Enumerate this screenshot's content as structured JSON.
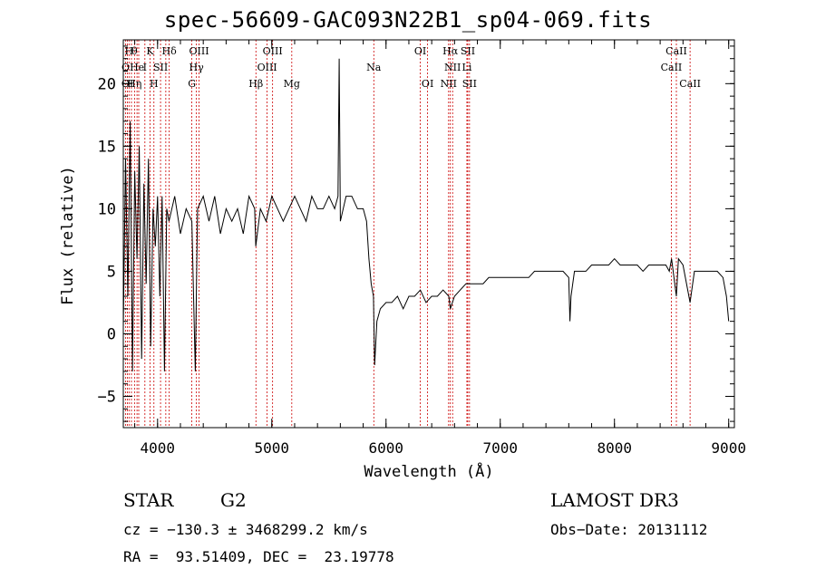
{
  "chart_data": {
    "type": "line",
    "title": "spec-56609-GAC093N22B1_sp04-069.fits",
    "xlabel": "Wavelength (Å)",
    "ylabel": "Flux (relative)",
    "xlim": [
      3700,
      9050
    ],
    "ylim": [
      -7.5,
      23.5
    ],
    "x_ticks": [
      4000,
      5000,
      6000,
      7000,
      8000,
      9000
    ],
    "y_ticks": [
      -5,
      0,
      5,
      10,
      15,
      20
    ],
    "x": [
      3700,
      3720,
      3740,
      3760,
      3780,
      3800,
      3820,
      3840,
      3860,
      3880,
      3900,
      3920,
      3940,
      3960,
      3980,
      4000,
      4020,
      4040,
      4060,
      4080,
      4100,
      4150,
      4200,
      4250,
      4300,
      4330,
      4350,
      4400,
      4450,
      4500,
      4550,
      4600,
      4650,
      4700,
      4750,
      4800,
      4850,
      4860,
      4900,
      4950,
      5000,
      5050,
      5100,
      5150,
      5200,
      5250,
      5300,
      5350,
      5400,
      5450,
      5500,
      5550,
      5580,
      5590,
      5600,
      5650,
      5700,
      5750,
      5800,
      5830,
      5850,
      5870,
      5890,
      5900,
      5920,
      5950,
      6000,
      6050,
      6100,
      6150,
      6200,
      6250,
      6300,
      6350,
      6400,
      6450,
      6500,
      6550,
      6563,
      6600,
      6650,
      6700,
      6750,
      6800,
      6850,
      6900,
      6950,
      7000,
      7050,
      7100,
      7150,
      7200,
      7250,
      7300,
      7350,
      7400,
      7450,
      7500,
      7550,
      7600,
      7610,
      7620,
      7650,
      7700,
      7750,
      7800,
      7850,
      7900,
      7950,
      8000,
      8050,
      8100,
      8150,
      8200,
      8250,
      8300,
      8350,
      8400,
      8450,
      8480,
      8500,
      8542,
      8560,
      8600,
      8662,
      8700,
      8750,
      8800,
      8850,
      8900,
      8950,
      8980,
      9000
    ],
    "y": [
      0.5,
      14,
      3,
      17,
      -3,
      13,
      6,
      15,
      -2,
      12,
      4,
      14,
      -1,
      10,
      7,
      11,
      3,
      11,
      -3,
      10,
      9,
      11,
      8,
      10,
      9,
      -3,
      10,
      11,
      9,
      11,
      8,
      10,
      9,
      10,
      8,
      11,
      10,
      7,
      10,
      9,
      11,
      10,
      9,
      10,
      11,
      10,
      9,
      11,
      10,
      10,
      11,
      10,
      11,
      22,
      9,
      11,
      11,
      10,
      10,
      9,
      6,
      4,
      3,
      -2.5,
      1,
      2,
      2.5,
      2.5,
      3,
      2,
      3,
      3,
      3.5,
      2.5,
      3,
      3,
      3.5,
      3,
      2,
      3,
      3.5,
      4,
      4,
      4,
      4,
      4.5,
      4.5,
      4.5,
      4.5,
      4.5,
      4.5,
      4.5,
      4.5,
      5,
      5,
      5,
      5,
      5,
      5,
      4.5,
      1,
      3,
      5,
      5,
      5,
      5.5,
      5.5,
      5.5,
      5.5,
      6,
      5.5,
      5.5,
      5.5,
      5.5,
      5,
      5.5,
      5.5,
      5.5,
      5.5,
      5,
      6,
      3,
      6,
      5.5,
      2.5,
      5,
      5,
      5,
      5,
      5,
      4.5,
      3,
      1
    ]
  },
  "spectral_lines": [
    {
      "wl": 3720,
      "row": 1,
      "label": "O"
    },
    {
      "wl": 3736,
      "row": 2,
      "label": "OI"
    },
    {
      "wl": 3750,
      "row": 0,
      "label": "H"
    },
    {
      "wl": 3771,
      "row": 2,
      "label": "H"
    },
    {
      "wl": 3798,
      "row": 0,
      "label": "θ"
    },
    {
      "wl": 3820,
      "row": 1,
      "label": "He"
    },
    {
      "wl": 3835,
      "row": 2,
      "label": "η"
    },
    {
      "wl": 3889,
      "row": 1,
      "label": "I"
    },
    {
      "wl": 3934,
      "row": 0,
      "label": "K"
    },
    {
      "wl": 3968,
      "row": 2,
      "label": "H"
    },
    {
      "wl": 4026,
      "row": 1,
      "label": "SII"
    },
    {
      "wl": 4102,
      "row": 0,
      "label": "Hδ"
    },
    {
      "wl": 4072,
      "row": 1,
      "label": ""
    },
    {
      "wl": 4300,
      "row": 2,
      "label": "G"
    },
    {
      "wl": 4340,
      "row": 1,
      "label": "Hγ"
    },
    {
      "wl": 4363,
      "row": 0,
      "label": "OIII"
    },
    {
      "wl": 4861,
      "row": 2,
      "label": "Hβ"
    },
    {
      "wl": 4959,
      "row": 1,
      "label": "OIII"
    },
    {
      "wl": 5007,
      "row": 0,
      "label": "OIII"
    },
    {
      "wl": 5175,
      "row": 2,
      "label": "Mg"
    },
    {
      "wl": 5893,
      "row": 1,
      "label": "Na"
    },
    {
      "wl": 6300,
      "row": 0,
      "label": "OI"
    },
    {
      "wl": 6364,
      "row": 2,
      "label": "OI"
    },
    {
      "wl": 6548,
      "row": 2,
      "label": "NII"
    },
    {
      "wl": 6563,
      "row": 0,
      "label": "Hα"
    },
    {
      "wl": 6583,
      "row": 1,
      "label": "NII"
    },
    {
      "wl": 6708,
      "row": 1,
      "label": "Li"
    },
    {
      "wl": 6716,
      "row": 0,
      "label": "SII"
    },
    {
      "wl": 6731,
      "row": 2,
      "label": "SII"
    },
    {
      "wl": 8498,
      "row": 1,
      "label": "CaII"
    },
    {
      "wl": 8542,
      "row": 0,
      "label": "CaII"
    },
    {
      "wl": 8662,
      "row": 2,
      "label": "CaII"
    }
  ],
  "info": {
    "class": "STAR",
    "subclass": "G2",
    "survey": "LAMOST DR3",
    "cz": "cz = −130.3 ± 3468299.2 km/s",
    "obs_date": "Obs−Date: 20131112",
    "coords": "RA =  93.51409, DEC =  23.19778"
  },
  "colors": {
    "line": "#000000",
    "marker": "#cc0000"
  }
}
